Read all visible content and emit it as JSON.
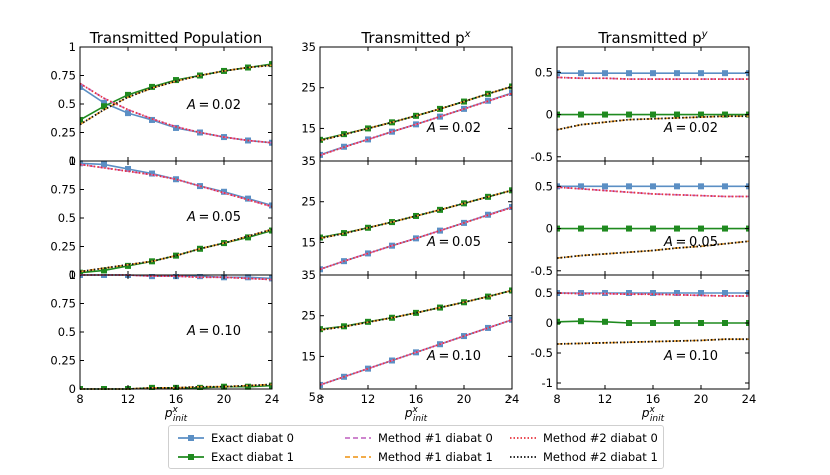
{
  "chart_data": {
    "type": "line",
    "x": [
      8,
      10,
      12,
      14,
      16,
      18,
      20,
      22,
      24
    ],
    "xlabel_base": "p",
    "xlabel_sup": "x",
    "xlabel_sub": "init",
    "xticks": [
      "8",
      "12",
      "16",
      "20",
      "24"
    ],
    "columns": [
      {
        "title": "Transmitted Population",
        "title_sup": "",
        "yticks": [
          "0",
          "0.25",
          "0.5",
          "0.75",
          "1"
        ]
      },
      {
        "title": "Transmitted p",
        "title_sup": "x",
        "yticks": [
          "15",
          "25",
          "35"
        ],
        "yticks_bottom": [
          "5",
          "15",
          "25",
          "35"
        ]
      },
      {
        "title": "Transmitted p",
        "title_sup": "y",
        "yticks": [
          "-0.5",
          "0",
          "0.5"
        ],
        "yticks_bottom": [
          "-1",
          "-0.5",
          "0",
          "0.5"
        ]
      }
    ],
    "rows": [
      {
        "annotation": "A = 0.02",
        "population": {
          "ylim": [
            0,
            1
          ],
          "series": [
            {
              "key": "exact0",
              "values": [
                0.65,
                0.51,
                0.42,
                0.36,
                0.29,
                0.25,
                0.21,
                0.18,
                0.16
              ]
            },
            {
              "key": "exact1",
              "values": [
                0.36,
                0.48,
                0.58,
                0.65,
                0.71,
                0.75,
                0.79,
                0.82,
                0.85
              ]
            },
            {
              "key": "m1d0",
              "values": [
                0.68,
                0.55,
                0.45,
                0.37,
                0.3,
                0.25,
                0.21,
                0.18,
                0.16
              ]
            },
            {
              "key": "m1d1",
              "values": [
                0.32,
                0.45,
                0.56,
                0.64,
                0.7,
                0.75,
                0.79,
                0.82,
                0.84
              ]
            },
            {
              "key": "m2d0",
              "values": [
                0.68,
                0.55,
                0.45,
                0.37,
                0.3,
                0.25,
                0.21,
                0.18,
                0.16
              ]
            },
            {
              "key": "m2d1",
              "values": [
                0.32,
                0.45,
                0.56,
                0.64,
                0.7,
                0.75,
                0.79,
                0.82,
                0.84
              ]
            }
          ]
        },
        "px": {
          "ylim": [
            7,
            35
          ],
          "series": [
            {
              "key": "exact0",
              "values": [
                8.5,
                10.5,
                12.3,
                14.2,
                16.0,
                17.9,
                19.8,
                21.8,
                23.7
              ]
            },
            {
              "key": "exact1",
              "values": [
                12.2,
                13.6,
                15.0,
                16.5,
                18.1,
                19.8,
                21.6,
                23.5,
                25.3
              ]
            },
            {
              "key": "m1d0",
              "values": [
                8.4,
                10.4,
                12.3,
                14.2,
                16.0,
                17.9,
                19.8,
                21.7,
                23.6
              ]
            },
            {
              "key": "m1d1",
              "values": [
                12.0,
                13.5,
                15.0,
                16.5,
                18.1,
                19.8,
                21.6,
                23.5,
                25.3
              ]
            },
            {
              "key": "m2d0",
              "values": [
                8.4,
                10.4,
                12.3,
                14.2,
                16.0,
                17.9,
                19.8,
                21.7,
                23.6
              ]
            },
            {
              "key": "m2d1",
              "values": [
                12.0,
                13.5,
                15.0,
                16.5,
                18.1,
                19.8,
                21.6,
                23.5,
                25.3
              ]
            }
          ]
        },
        "py": {
          "ylim": [
            -0.55,
            0.8
          ],
          "series": [
            {
              "key": "exact0",
              "values": [
                0.49,
                0.49,
                0.49,
                0.49,
                0.49,
                0.49,
                0.49,
                0.49,
                0.49
              ]
            },
            {
              "key": "exact1",
              "values": [
                0.0,
                0.0,
                0.0,
                0.0,
                0.0,
                0.0,
                0.0,
                0.0,
                0.0
              ]
            },
            {
              "key": "m1d0",
              "values": [
                0.44,
                0.43,
                0.43,
                0.42,
                0.42,
                0.42,
                0.42,
                0.42,
                0.42
              ]
            },
            {
              "key": "m1d1",
              "values": [
                -0.18,
                -0.12,
                -0.09,
                -0.06,
                -0.05,
                -0.04,
                -0.03,
                -0.02,
                -0.02
              ]
            },
            {
              "key": "m2d0",
              "values": [
                0.44,
                0.43,
                0.43,
                0.42,
                0.42,
                0.42,
                0.42,
                0.42,
                0.42
              ]
            },
            {
              "key": "m2d1",
              "values": [
                -0.18,
                -0.12,
                -0.09,
                -0.06,
                -0.05,
                -0.04,
                -0.03,
                -0.02,
                -0.02
              ]
            }
          ]
        }
      },
      {
        "annotation": "A = 0.05",
        "population": {
          "ylim": [
            0,
            1
          ],
          "series": [
            {
              "key": "exact0",
              "values": [
                0.98,
                0.97,
                0.93,
                0.89,
                0.84,
                0.78,
                0.73,
                0.67,
                0.61
              ]
            },
            {
              "key": "exact1",
              "values": [
                0.02,
                0.04,
                0.08,
                0.12,
                0.17,
                0.23,
                0.28,
                0.33,
                0.39
              ]
            },
            {
              "key": "m1d0",
              "values": [
                0.97,
                0.94,
                0.91,
                0.88,
                0.84,
                0.78,
                0.72,
                0.66,
                0.6
              ]
            },
            {
              "key": "m1d1",
              "values": [
                0.03,
                0.06,
                0.09,
                0.12,
                0.17,
                0.23,
                0.28,
                0.34,
                0.4
              ]
            },
            {
              "key": "m2d0",
              "values": [
                0.97,
                0.94,
                0.91,
                0.88,
                0.84,
                0.78,
                0.72,
                0.66,
                0.6
              ]
            },
            {
              "key": "m2d1",
              "values": [
                0.03,
                0.06,
                0.09,
                0.12,
                0.17,
                0.23,
                0.28,
                0.34,
                0.4
              ]
            }
          ]
        },
        "px": {
          "ylim": [
            7,
            35
          ],
          "series": [
            {
              "key": "exact0",
              "values": [
                8.4,
                10.4,
                12.3,
                14.2,
                16.0,
                17.9,
                19.8,
                21.8,
                23.7
              ]
            },
            {
              "key": "exact1",
              "values": [
                16.2,
                17.3,
                18.6,
                20.0,
                21.5,
                23.0,
                24.6,
                26.2,
                27.8
              ]
            },
            {
              "key": "m1d0",
              "values": [
                8.4,
                10.4,
                12.3,
                14.2,
                16.0,
                17.9,
                19.8,
                21.7,
                23.6
              ]
            },
            {
              "key": "m1d1",
              "values": [
                16.0,
                17.2,
                18.6,
                20.0,
                21.5,
                23.0,
                24.6,
                26.2,
                27.8
              ]
            },
            {
              "key": "m2d0",
              "values": [
                8.4,
                10.4,
                12.3,
                14.2,
                16.0,
                17.9,
                19.8,
                21.7,
                23.6
              ]
            },
            {
              "key": "m2d1",
              "values": [
                16.0,
                17.2,
                18.6,
                20.0,
                21.5,
                23.0,
                24.6,
                26.2,
                27.8
              ]
            }
          ]
        },
        "py": {
          "ylim": [
            -0.55,
            0.8
          ],
          "series": [
            {
              "key": "exact0",
              "values": [
                0.5,
                0.5,
                0.5,
                0.5,
                0.5,
                0.5,
                0.5,
                0.5,
                0.5
              ]
            },
            {
              "key": "exact1",
              "values": [
                0.0,
                0.0,
                0.0,
                0.0,
                0.0,
                0.0,
                0.0,
                0.0,
                0.0
              ]
            },
            {
              "key": "m1d0",
              "values": [
                0.49,
                0.47,
                0.45,
                0.43,
                0.41,
                0.4,
                0.39,
                0.38,
                0.38
              ]
            },
            {
              "key": "m1d1",
              "values": [
                -0.35,
                -0.32,
                -0.3,
                -0.28,
                -0.26,
                -0.23,
                -0.21,
                -0.18,
                -0.15
              ]
            },
            {
              "key": "m2d0",
              "values": [
                0.49,
                0.47,
                0.45,
                0.43,
                0.41,
                0.4,
                0.39,
                0.38,
                0.38
              ]
            },
            {
              "key": "m2d1",
              "values": [
                -0.35,
                -0.32,
                -0.3,
                -0.28,
                -0.26,
                -0.23,
                -0.21,
                -0.18,
                -0.15
              ]
            }
          ]
        }
      },
      {
        "annotation": "A = 0.10",
        "population": {
          "ylim": [
            0,
            1
          ],
          "series": [
            {
              "key": "exact0",
              "values": [
                1.0,
                1.0,
                1.0,
                0.99,
                0.99,
                0.99,
                0.98,
                0.98,
                0.97
              ]
            },
            {
              "key": "exact1",
              "values": [
                0.0,
                0.0,
                0.0,
                0.01,
                0.01,
                0.01,
                0.02,
                0.02,
                0.03
              ]
            },
            {
              "key": "m1d0",
              "values": [
                1.0,
                1.0,
                1.0,
                0.99,
                0.99,
                0.98,
                0.98,
                0.97,
                0.96
              ]
            },
            {
              "key": "m1d1",
              "values": [
                0.0,
                0.0,
                0.0,
                0.01,
                0.01,
                0.02,
                0.02,
                0.03,
                0.04
              ]
            },
            {
              "key": "m2d0",
              "values": [
                1.0,
                1.0,
                1.0,
                0.99,
                0.99,
                0.98,
                0.98,
                0.97,
                0.96
              ]
            },
            {
              "key": "m2d1",
              "values": [
                0.0,
                0.0,
                0.0,
                0.01,
                0.01,
                0.02,
                0.02,
                0.03,
                0.04
              ]
            }
          ]
        },
        "px": {
          "ylim": [
            7,
            35
          ],
          "series": [
            {
              "key": "exact0",
              "values": [
                8.0,
                10.0,
                12.0,
                14.0,
                16.0,
                18.0,
                20.0,
                22.0,
                24.0
              ]
            },
            {
              "key": "exact1",
              "values": [
                21.7,
                22.4,
                23.5,
                24.5,
                25.7,
                27.0,
                28.3,
                29.7,
                31.2
              ]
            },
            {
              "key": "m1d0",
              "values": [
                8.0,
                10.0,
                12.0,
                14.0,
                16.0,
                18.0,
                20.0,
                22.0,
                24.0
              ]
            },
            {
              "key": "m1d1",
              "values": [
                21.5,
                22.3,
                23.4,
                24.5,
                25.7,
                27.0,
                28.3,
                29.7,
                31.2
              ]
            },
            {
              "key": "m2d0",
              "values": [
                8.0,
                10.0,
                12.0,
                14.0,
                16.0,
                18.0,
                20.0,
                22.0,
                24.0
              ]
            },
            {
              "key": "m2d1",
              "values": [
                21.5,
                22.3,
                23.4,
                24.5,
                25.7,
                27.0,
                28.3,
                29.7,
                31.2
              ]
            }
          ]
        },
        "py": {
          "ylim": [
            -1.1,
            0.8
          ],
          "series": [
            {
              "key": "exact0",
              "values": [
                0.5,
                0.5,
                0.5,
                0.5,
                0.5,
                0.5,
                0.5,
                0.5,
                0.5
              ]
            },
            {
              "key": "exact1",
              "values": [
                0.02,
                0.03,
                0.02,
                0.0,
                0.0,
                0.0,
                0.0,
                0.0,
                0.0
              ]
            },
            {
              "key": "m1d0",
              "values": [
                0.5,
                0.49,
                0.49,
                0.48,
                0.48,
                0.47,
                0.46,
                0.45,
                0.45
              ]
            },
            {
              "key": "m1d1",
              "values": [
                -0.35,
                -0.34,
                -0.33,
                -0.32,
                -0.31,
                -0.3,
                -0.29,
                -0.27,
                -0.27
              ]
            },
            {
              "key": "m2d0",
              "values": [
                0.5,
                0.49,
                0.49,
                0.48,
                0.48,
                0.47,
                0.46,
                0.45,
                0.45
              ]
            },
            {
              "key": "m2d1",
              "values": [
                -0.35,
                -0.34,
                -0.33,
                -0.32,
                -0.31,
                -0.3,
                -0.29,
                -0.27,
                -0.27
              ]
            }
          ]
        }
      }
    ],
    "legend": {
      "placement": "bottom-center",
      "entries": [
        {
          "key": "exact0",
          "label": "Exact diabat 0",
          "color": "#5b8fc4",
          "style": "solid-square"
        },
        {
          "key": "exact1",
          "label": "Exact diabat 1",
          "color": "#1f8a1f",
          "style": "solid-square"
        },
        {
          "key": "m1d0",
          "label": "Method #1 diabat 0",
          "color": "#c774c7",
          "style": "dashed"
        },
        {
          "key": "m1d1",
          "label": "Method #1 diabat 1",
          "color": "#f0a030",
          "style": "dashed"
        },
        {
          "key": "m2d0",
          "label": "Method #2 diabat 0",
          "color": "#e8323c",
          "style": "dotted"
        },
        {
          "key": "m2d1",
          "label": "Method #2 diabat 1",
          "color": "#111111",
          "style": "dotted"
        }
      ]
    },
    "grid": false
  }
}
